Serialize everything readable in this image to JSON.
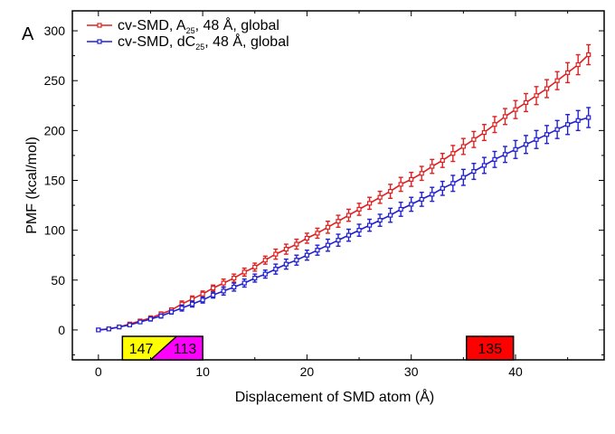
{
  "chart_data": {
    "type": "line",
    "panel_label": "A",
    "xlabel": "Displacement of SMD atom (Å)",
    "ylabel": "PMF (kcal/mol)",
    "xlim": [
      -2.5,
      48.5
    ],
    "ylim": [
      -30,
      320
    ],
    "x_ticks": [
      0,
      10,
      20,
      30,
      40
    ],
    "y_ticks": [
      0,
      50,
      100,
      150,
      200,
      250,
      300
    ],
    "grid": false,
    "legend_position": "top-left",
    "series": [
      {
        "name_parts": [
          "cv-SMD, A",
          "25",
          ", 48 Å, global"
        ],
        "color": "#e02020",
        "x": [
          0,
          1,
          2,
          3,
          4,
          5,
          6,
          7,
          8,
          9,
          10,
          11,
          12,
          13,
          14,
          15,
          16,
          17,
          18,
          19,
          20,
          21,
          22,
          23,
          24,
          25,
          26,
          27,
          28,
          29,
          30,
          31,
          32,
          33,
          34,
          35,
          36,
          37,
          38,
          39,
          40,
          41,
          42,
          43,
          44,
          45,
          46,
          47
        ],
        "values": [
          0,
          1,
          3,
          6,
          9,
          12,
          16,
          20,
          26,
          31,
          36,
          42,
          47,
          52,
          58,
          63,
          70,
          76,
          81,
          86,
          92,
          97,
          103,
          109,
          115,
          121,
          127,
          133,
          139,
          146,
          151,
          157,
          164,
          170,
          177,
          184,
          191,
          198,
          206,
          214,
          221,
          228,
          235,
          242,
          250,
          258,
          266,
          276
        ],
        "errors": [
          1,
          1,
          1,
          1,
          1,
          2,
          2,
          2,
          3,
          3,
          3,
          3,
          4,
          4,
          4,
          4,
          4,
          5,
          5,
          5,
          5,
          5,
          6,
          6,
          6,
          6,
          6,
          6,
          7,
          7,
          7,
          7,
          7,
          7,
          8,
          8,
          8,
          8,
          8,
          8,
          9,
          9,
          9,
          9,
          9,
          10,
          10,
          10
        ]
      },
      {
        "name_parts": [
          "cv-SMD, dC",
          "25",
          ", 48 Å, global"
        ],
        "color": "#2020d0",
        "x": [
          0,
          1,
          2,
          3,
          4,
          5,
          6,
          7,
          8,
          9,
          10,
          11,
          12,
          13,
          14,
          15,
          16,
          17,
          18,
          19,
          20,
          21,
          22,
          23,
          24,
          25,
          26,
          27,
          28,
          29,
          30,
          31,
          32,
          33,
          34,
          35,
          36,
          37,
          38,
          39,
          40,
          41,
          42,
          43,
          44,
          45,
          46,
          47
        ],
        "values": [
          0,
          1,
          3,
          5,
          8,
          11,
          14,
          18,
          22,
          26,
          30,
          35,
          39,
          43,
          47,
          52,
          56,
          61,
          66,
          70,
          75,
          80,
          85,
          90,
          95,
          100,
          105,
          110,
          115,
          121,
          126,
          131,
          136,
          142,
          147,
          153,
          159,
          165,
          171,
          176,
          181,
          186,
          191,
          196,
          201,
          206,
          210,
          213
        ],
        "errors": [
          1,
          1,
          1,
          1,
          1,
          2,
          2,
          2,
          3,
          3,
          3,
          3,
          4,
          4,
          4,
          4,
          4,
          5,
          5,
          5,
          5,
          5,
          6,
          6,
          6,
          6,
          6,
          6,
          7,
          7,
          7,
          7,
          7,
          7,
          8,
          8,
          8,
          8,
          8,
          8,
          9,
          9,
          9,
          9,
          9,
          10,
          10,
          10
        ]
      }
    ],
    "region_boxes": [
      {
        "type": "split",
        "x_range": [
          2.3,
          10
        ],
        "split_at": [
          5,
          7.5
        ],
        "labels": [
          "147",
          "113"
        ],
        "colors": [
          "#ffff00",
          "#ff00ff"
        ]
      },
      {
        "type": "single",
        "x_range": [
          35.3,
          39.8
        ],
        "labels": [
          "135"
        ],
        "colors": [
          "#ff0000"
        ]
      }
    ]
  }
}
